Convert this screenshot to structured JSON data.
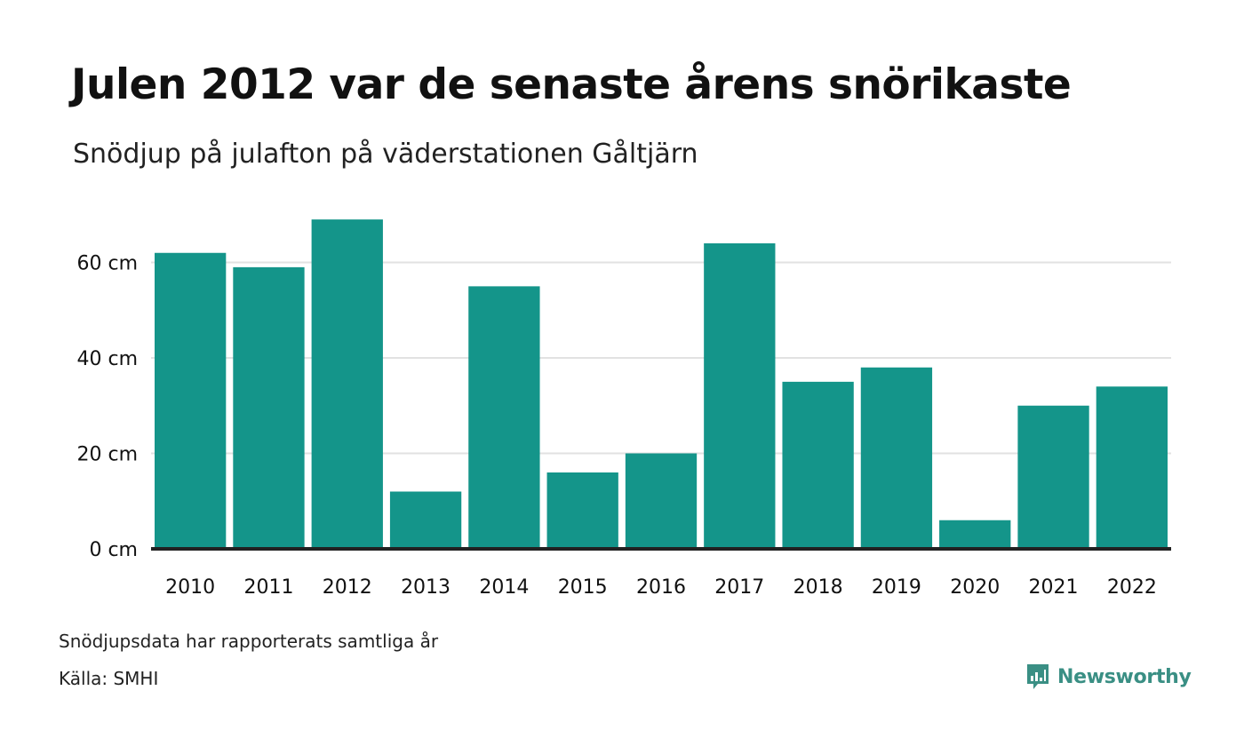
{
  "title": "Julen 2012 var de senaste årens snörikaste",
  "subtitle": "Snödjup på julafton på väderstationen Gåltjärn",
  "footnote": "Snödjupsdata har rapporterats samtliga år",
  "source": "Källa: SMHI",
  "brand": {
    "name": "Newsworthy",
    "icon": "newsworthy-logo-icon",
    "color": "#3a8f84"
  },
  "colors": {
    "bar": "#14958a",
    "grid": "#e2e2e2",
    "baseline": "#222222",
    "text": "#111111"
  },
  "chart_data": {
    "type": "bar",
    "categories": [
      "2010",
      "2011",
      "2012",
      "2013",
      "2014",
      "2015",
      "2016",
      "2017",
      "2018",
      "2019",
      "2020",
      "2021",
      "2022"
    ],
    "values": [
      62,
      59,
      69,
      12,
      55,
      16,
      20,
      64,
      35,
      38,
      6,
      30,
      34
    ],
    "ylim": [
      0,
      72
    ],
    "yticks": [
      0,
      20,
      40,
      60
    ],
    "ytick_labels": [
      "0 cm",
      "20 cm",
      "40 cm",
      "60 cm"
    ],
    "grid": true,
    "legend": "none"
  }
}
